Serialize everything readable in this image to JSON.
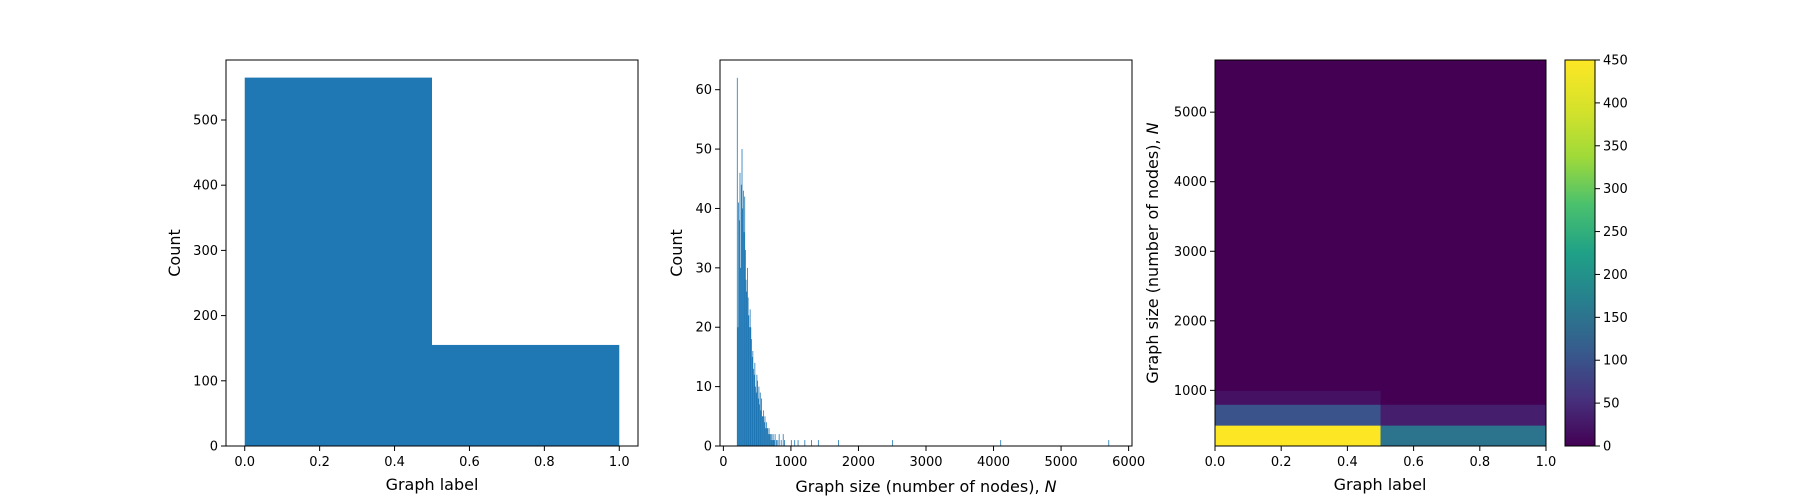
{
  "chart_data": [
    {
      "type": "bar",
      "name": "label-histogram",
      "bins": [
        [
          0.0,
          0.5
        ],
        [
          0.5,
          1.0
        ]
      ],
      "values": [
        565,
        155
      ],
      "color": "#1f77b4",
      "xlabel": "Graph label",
      "ylabel": "Count",
      "xlim": [
        -0.05,
        1.05
      ],
      "ylim": [
        0,
        592
      ],
      "xticks": [
        0.0,
        0.2,
        0.4,
        0.6,
        0.8,
        1.0
      ],
      "xtick_labels": [
        "0.0",
        "0.2",
        "0.4",
        "0.6",
        "0.8",
        "1.0"
      ],
      "yticks": [
        0,
        100,
        200,
        300,
        400,
        500
      ],
      "ytick_labels": [
        "0",
        "100",
        "200",
        "300",
        "400",
        "500"
      ]
    },
    {
      "type": "bar",
      "name": "size-histogram",
      "bin_width": 10,
      "bins_x": [
        200,
        210,
        220,
        230,
        240,
        250,
        260,
        270,
        280,
        290,
        300,
        310,
        320,
        330,
        340,
        350,
        360,
        370,
        380,
        390,
        400,
        410,
        420,
        430,
        440,
        450,
        460,
        470,
        480,
        490,
        500,
        510,
        520,
        530,
        540,
        550,
        560,
        570,
        580,
        590,
        600,
        610,
        620,
        630,
        640,
        650,
        660,
        670,
        680,
        690,
        700,
        710,
        720,
        730,
        740,
        750,
        760,
        780,
        800,
        820,
        850,
        880,
        900,
        1000,
        1050,
        1100,
        1200,
        1300,
        1400,
        1700,
        2500,
        4100,
        5700
      ],
      "values": [
        62,
        20,
        41,
        38,
        46,
        30,
        44,
        50,
        40,
        43,
        36,
        42,
        33,
        28,
        26,
        30,
        25,
        22,
        20,
        23,
        20,
        18,
        15,
        16,
        13,
        12,
        14,
        10,
        9,
        12,
        11,
        8,
        10,
        7,
        9,
        6,
        8,
        5,
        5,
        6,
        4,
        5,
        3,
        4,
        3,
        3,
        2,
        3,
        2,
        2,
        1,
        2,
        1,
        2,
        1,
        1,
        2,
        1,
        1,
        2,
        1,
        2,
        1,
        1,
        1,
        1,
        1,
        1,
        1,
        1,
        1,
        1,
        1
      ],
      "color": "#1f77b4",
      "xlabel": "Graph size (number of nodes), ",
      "xlabel_var": "N",
      "ylabel": "Count",
      "xlim": [
        -50,
        6050
      ],
      "ylim": [
        0,
        65
      ],
      "xticks": [
        0,
        1000,
        2000,
        3000,
        4000,
        5000,
        6000
      ],
      "xtick_labels": [
        "0",
        "1000",
        "2000",
        "3000",
        "4000",
        "5000",
        "6000"
      ],
      "yticks": [
        0,
        10,
        20,
        30,
        40,
        50,
        60
      ],
      "ytick_labels": [
        "0",
        "10",
        "20",
        "30",
        "40",
        "50",
        "60"
      ]
    },
    {
      "type": "heatmap",
      "name": "label-size-2d-histogram",
      "x_edges": [
        0.0,
        0.5,
        1.0
      ],
      "y_edges": [
        200,
        500,
        800,
        1000,
        5750
      ],
      "counts": [
        [
          450,
          150
        ],
        [
          100,
          35
        ],
        [
          20,
          0
        ],
        [
          0,
          0
        ]
      ],
      "colormap": "viridis",
      "xlabel": "Graph label",
      "ylabel": "Graph size (number of nodes), ",
      "ylabel_var": "N",
      "xlim": [
        0.0,
        1.0
      ],
      "ylim": [
        200,
        5750
      ],
      "xticks": [
        0.0,
        0.2,
        0.4,
        0.6,
        0.8,
        1.0
      ],
      "xtick_labels": [
        "0.0",
        "0.2",
        "0.4",
        "0.6",
        "0.8",
        "1.0"
      ],
      "yticks": [
        1000,
        2000,
        3000,
        4000,
        5000
      ],
      "ytick_labels": [
        "1000",
        "2000",
        "3000",
        "4000",
        "5000"
      ],
      "colorbar": {
        "vmin": 0,
        "vmax": 450,
        "ticks": [
          0,
          50,
          100,
          150,
          200,
          250,
          300,
          350,
          400,
          450
        ],
        "tick_labels": [
          "0",
          "50",
          "100",
          "150",
          "200",
          "250",
          "300",
          "350",
          "400",
          "450"
        ]
      }
    }
  ]
}
